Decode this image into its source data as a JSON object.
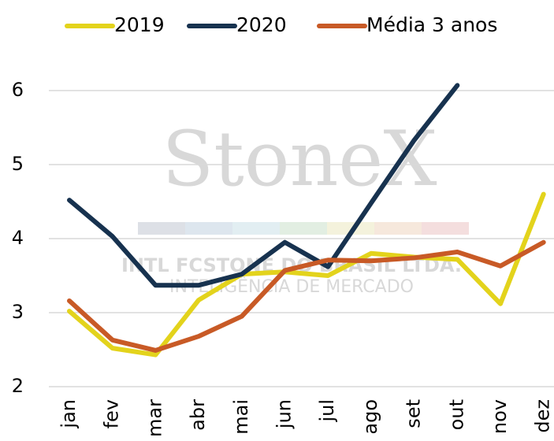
{
  "chart_data": {
    "type": "line",
    "categories": [
      "jan",
      "fev",
      "mar",
      "abr",
      "mai",
      "jun",
      "jul",
      "ago",
      "set",
      "out",
      "nov",
      "dez"
    ],
    "series": [
      {
        "name": "2019",
        "color": "#e3d31c",
        "values": [
          3.02,
          2.52,
          2.43,
          3.17,
          3.52,
          3.55,
          3.5,
          3.8,
          3.75,
          3.72,
          3.12,
          4.6
        ]
      },
      {
        "name": "2020",
        "color": "#17324f",
        "values": [
          4.52,
          4.03,
          3.37,
          3.37,
          3.52,
          3.95,
          3.62,
          4.48,
          5.33,
          6.07,
          null,
          null
        ]
      },
      {
        "name": "Média 3 anos",
        "color": "#c85a26",
        "values": [
          3.16,
          2.63,
          2.49,
          2.68,
          2.95,
          3.57,
          3.71,
          3.7,
          3.74,
          3.82,
          3.63,
          3.95
        ]
      }
    ],
    "ylim": [
      2,
      6.5
    ],
    "yticks": [
      2,
      3,
      4,
      5,
      6
    ],
    "grid": true,
    "legend": "top",
    "annotations": [
      "StoneX",
      "INTL FCSTONE DO BRASIL LTDA.",
      "INTELIGÊNCIA DE MERCADO"
    ]
  }
}
